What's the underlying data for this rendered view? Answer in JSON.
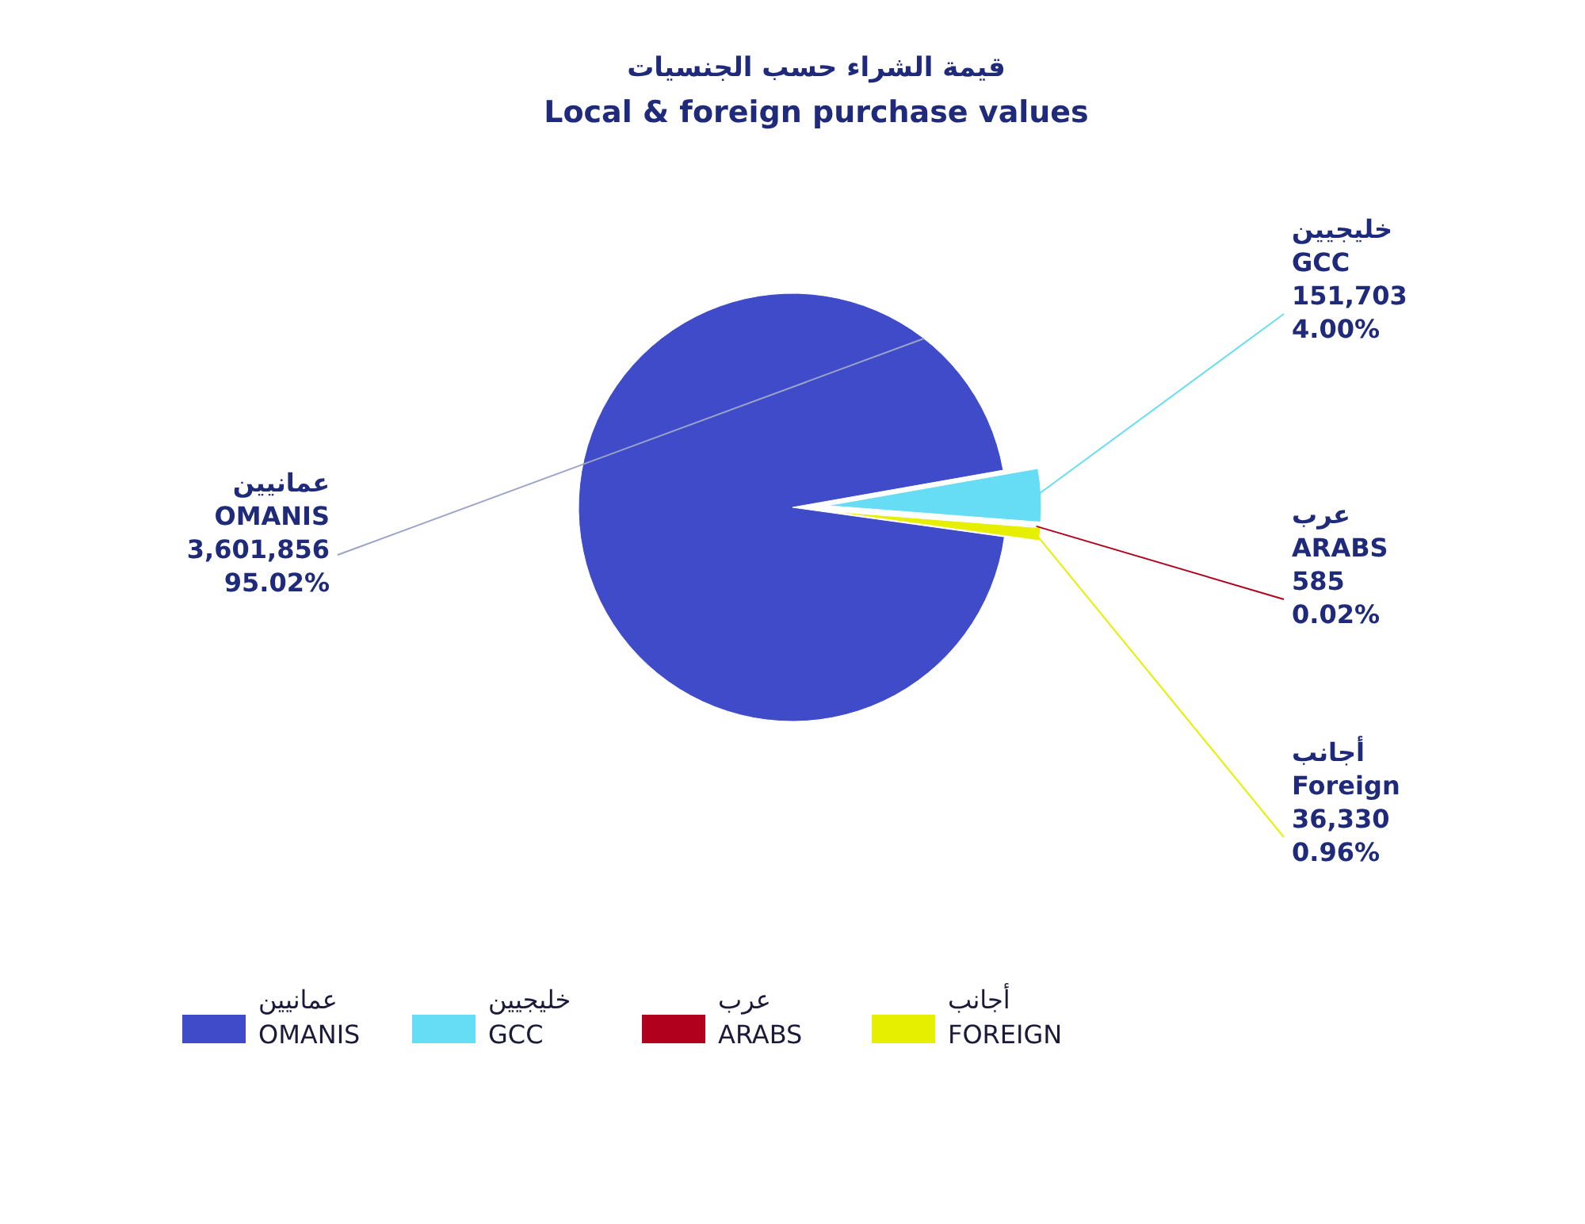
{
  "chart_data": {
    "type": "pie",
    "title": "قيمة الشراء حسب الجنسيات",
    "subtitle": "Local & foreign purchase values",
    "categories": [
      "عمانيين\nOMANIS",
      "خليجيين\nGCC",
      "عرب\nARABS",
      "أجانب\nFOREIGN"
    ],
    "values": [
      3601856,
      151703,
      585,
      36330
    ],
    "colors": [
      "#3f4bc8",
      "#66ddf5",
      "#b0001e",
      "#e6ef00"
    ],
    "value_labels": [
      "عمانيين\nOMANIS\n3,601,856\n95.02%",
      "خليجيين\nGCC\n151,703\n4.00%",
      "عرب\nARABS\n585\n0.02%",
      "أجانب\nForeign\n36,330\n0.96%"
    ],
    "legend": "bottom"
  }
}
